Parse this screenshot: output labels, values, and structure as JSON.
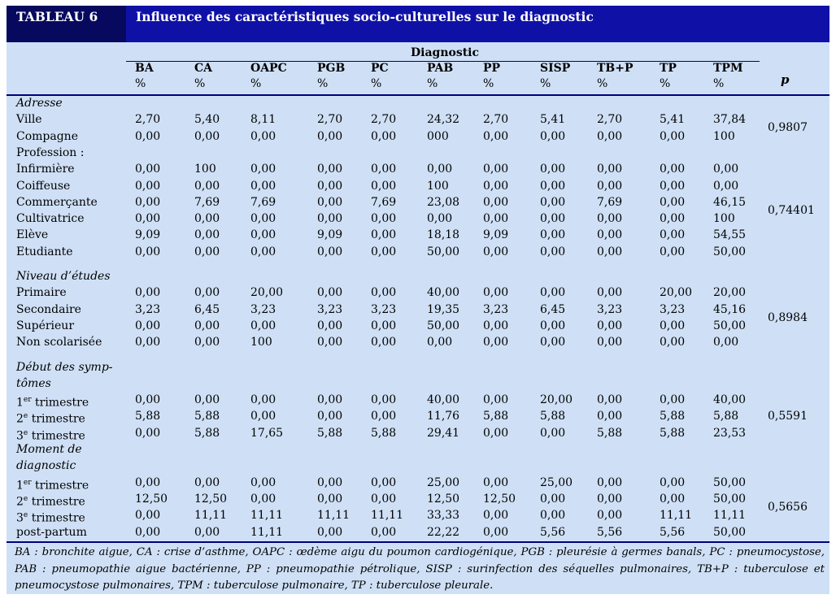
{
  "label": "TABLEAU 6",
  "title": "Influence des caractéristiques socio-culturelles sur le diagnostic",
  "diagnostic_header": "Diagnostic",
  "p_header": "p",
  "unit": "%",
  "columns": [
    "BA",
    "CA",
    "OAPC",
    "PGB",
    "PC",
    "PAB",
    "PP",
    "SISP",
    "TB+P",
    "TP",
    "TPM"
  ],
  "groups": [
    {
      "heading": "Adresse",
      "italic": true,
      "heading_lines": [
        "Adresse"
      ],
      "p": "0,9807",
      "rows": [
        {
          "label": "Ville",
          "values": [
            "2,70",
            "5,40",
            "8,11",
            "2,70",
            "2,70",
            "24,32",
            "2,70",
            "5,41",
            "2,70",
            "5,41",
            "37,84"
          ]
        },
        {
          "label": "Compagne",
          "values": [
            "0,00",
            "0,00",
            "0,00",
            "0,00",
            "0,00",
            "000",
            "0,00",
            "0,00",
            "0,00",
            "0,00",
            "100"
          ]
        }
      ]
    },
    {
      "heading": "Profession :",
      "italic": false,
      "heading_lines": [
        "Profession :"
      ],
      "p": "0,74401",
      "rows": [
        {
          "label": "Infirmière",
          "values": [
            "0,00",
            "100",
            "0,00",
            "0,00",
            "0,00",
            "0,00",
            "0,00",
            "0,00",
            "0,00",
            "0,00",
            "0,00"
          ]
        },
        {
          "label": "Coiffeuse",
          "values": [
            "0,00",
            "0,00",
            "0,00",
            "0,00",
            "0,00",
            "100",
            "0,00",
            "0,00",
            "0,00",
            "0,00",
            "0,00"
          ]
        },
        {
          "label": "Commerçante",
          "values": [
            "0,00",
            "7,69",
            "7,69",
            "0,00",
            "7,69",
            "23,08",
            "0,00",
            "0,00",
            "7,69",
            "0,00",
            "46,15"
          ]
        },
        {
          "label": "Cultivatrice",
          "values": [
            "0,00",
            "0,00",
            "0,00",
            "0,00",
            "0,00",
            "0,00",
            "0,00",
            "0,00",
            "0,00",
            "0,00",
            "100"
          ]
        },
        {
          "label": "Elève",
          "values": [
            "9,09",
            "0,00",
            "0,00",
            "9,09",
            "0,00",
            "18,18",
            "9,09",
            "0,00",
            "0,00",
            "0,00",
            "54,55"
          ]
        },
        {
          "label": "Etudiante",
          "values": [
            "0,00",
            "0,00",
            "0,00",
            "0,00",
            "0,00",
            "50,00",
            "0,00",
            "0,00",
            "0,00",
            "0,00",
            "50,00"
          ]
        }
      ]
    },
    {
      "heading": "Niveau d'études",
      "italic": true,
      "heading_lines": [
        "Niveau d’études"
      ],
      "p": "0,8984",
      "rows": [
        {
          "label": "Primaire",
          "values": [
            "0,00",
            "0,00",
            "20,00",
            "0,00",
            "0,00",
            "40,00",
            "0,00",
            "0,00",
            "0,00",
            "20,00",
            "20,00"
          ]
        },
        {
          "label": "Secondaire",
          "values": [
            "3,23",
            "6,45",
            "3,23",
            "3,23",
            "3,23",
            "19,35",
            "3,23",
            "6,45",
            "3,23",
            "3,23",
            "45,16"
          ]
        },
        {
          "label": "Supérieur",
          "values": [
            "0,00",
            "0,00",
            "0,00",
            "0,00",
            "0,00",
            "50,00",
            "0,00",
            "0,00",
            "0,00",
            "0,00",
            "50,00"
          ]
        },
        {
          "label": "Non scolarisée",
          "values": [
            "0,00",
            "0,00",
            "100",
            "0,00",
            "0,00",
            "0,00",
            "0,00",
            "0,00",
            "0,00",
            "0,00",
            "0,00"
          ]
        }
      ]
    },
    {
      "heading": "Début des symptômes",
      "italic": true,
      "heading_lines": [
        "Début des symp-",
        "tômes"
      ],
      "p": "0,5591",
      "rows": [
        {
          "label": "1er trimestre",
          "sup": "er",
          "base": "1",
          "rest": " trimestre",
          "values": [
            "0,00",
            "0,00",
            "0,00",
            "0,00",
            "0,00",
            "40,00",
            "0,00",
            "20,00",
            "0,00",
            "0,00",
            "40,00"
          ]
        },
        {
          "label": "2e trimestre",
          "sup": "e",
          "base": "2",
          "rest": " trimestre",
          "values": [
            "5,88",
            "5,88",
            "0,00",
            "0,00",
            "0,00",
            "11,76",
            "5,88",
            "5,88",
            "0,00",
            "5,88",
            "5,88"
          ]
        },
        {
          "label": "3e trimestre",
          "sup": "e",
          "base": "3",
          "rest": " trimestre",
          "values": [
            "0,00",
            "5,88",
            "17,65",
            "5,88",
            "5,88",
            "29,41",
            "0,00",
            "0,00",
            "5,88",
            "5,88",
            "23,53"
          ]
        }
      ]
    },
    {
      "heading": "Moment de diagnostic",
      "italic": true,
      "heading_lines": [
        "Moment de",
        "diagnostic"
      ],
      "p": "0,5656",
      "rows": [
        {
          "label": "1er trimestre",
          "sup": "er",
          "base": "1",
          "rest": " trimestre",
          "values": [
            "0,00",
            "0,00",
            "0,00",
            "0,00",
            "0,00",
            "25,00",
            "0,00",
            "25,00",
            "0,00",
            "0,00",
            "50,00"
          ]
        },
        {
          "label": "2e trimestre",
          "sup": "e",
          "base": "2",
          "rest": " trimestre",
          "values": [
            "12,50",
            "12,50",
            "0,00",
            "0,00",
            "0,00",
            "12,50",
            "12,50",
            "0,00",
            "0,00",
            "0,00",
            "50,00"
          ]
        },
        {
          "label": "3e trimestre",
          "sup": "e",
          "base": "3",
          "rest": " trimestre",
          "values": [
            "0,00",
            "11,11",
            "11,11",
            "11,11",
            "11,11",
            "33,33",
            "0,00",
            "0,00",
            "0,00",
            "11,11",
            "11,11"
          ]
        },
        {
          "label": "post-partum",
          "values": [
            "0,00",
            "0,00",
            "11,11",
            "0,00",
            "0,00",
            "22,22",
            "0,00",
            "5,56",
            "5,56",
            "5,56",
            "50,00"
          ]
        }
      ]
    }
  ],
  "legend": "BA : bronchite aigue, CA : crise d’asthme, OAPC : œdème aigu du poumon cardiogénique, PGB : pleurésie à germes banals, PC : pneumocystose, PAB : pneumopathie aigue bactérienne, PP : pneumopathie pétrolique, SISP : surinfection des séquelles pulmonaires, TB+P : tuberculose et pneumocystose pulmonaires, TPM : tuberculose pulmonaire, TP : tuberculose pleurale."
}
